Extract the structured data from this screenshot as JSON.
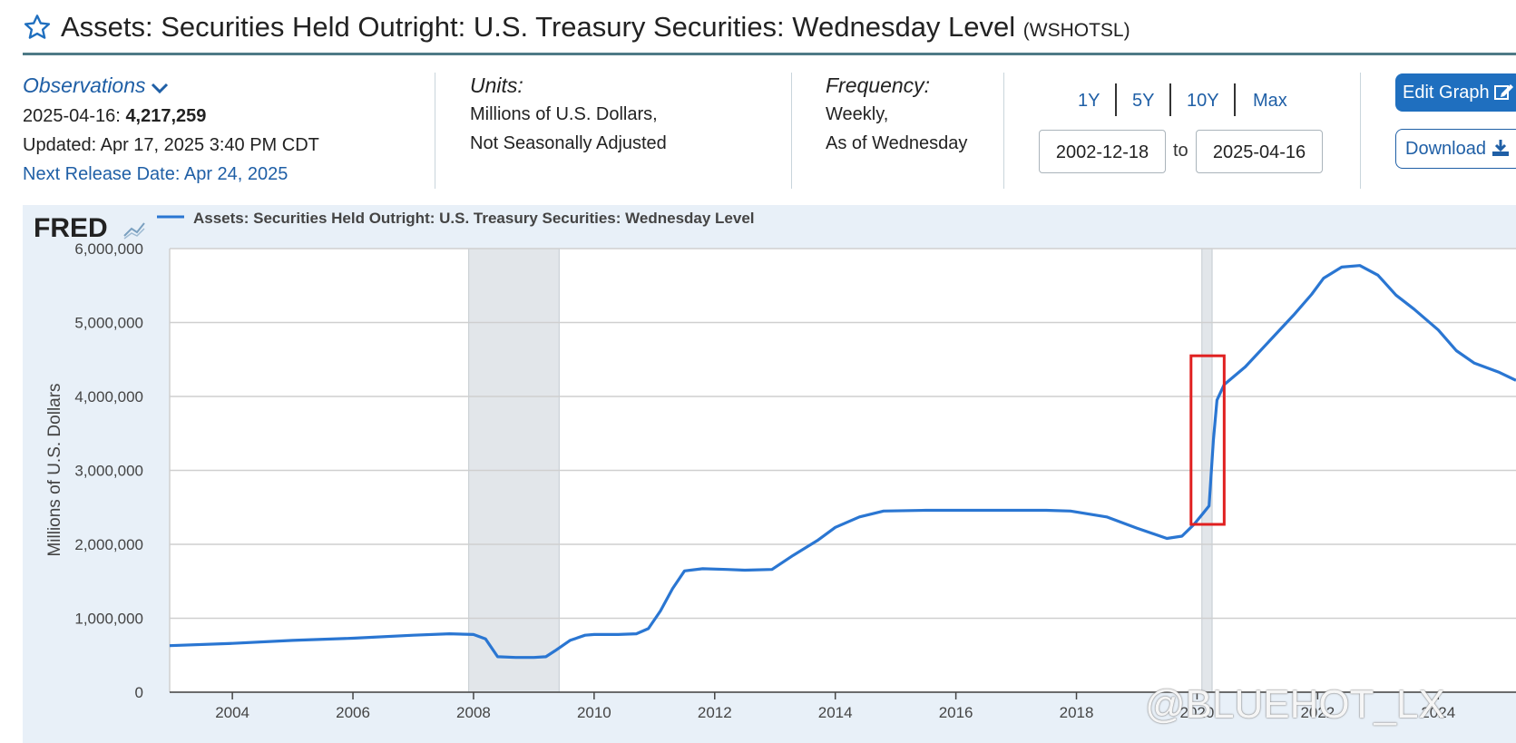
{
  "header": {
    "title": "Assets: Securities Held Outright: U.S. Treasury Securities: Wednesday Level",
    "series_id": "(WSHOTSL)"
  },
  "observations": {
    "label": "Observations",
    "date": "2025-04-16:",
    "value": "4,217,259",
    "updated": "Updated: Apr 17, 2025 3:40 PM CDT",
    "next_release": "Next Release Date: Apr 24, 2025"
  },
  "units": {
    "label": "Units:",
    "line1": "Millions of U.S. Dollars,",
    "line2": "Not Seasonally Adjusted"
  },
  "frequency": {
    "label": "Frequency:",
    "line1": "Weekly,",
    "line2": "As of Wednesday"
  },
  "range": {
    "buttons": [
      "1Y",
      "5Y",
      "10Y",
      "Max"
    ],
    "start": "2002-12-18",
    "to_label": "to",
    "end": "2025-04-16"
  },
  "actions": {
    "edit_label": "Edit Graph",
    "download_label": "Download"
  },
  "colors": {
    "line": "#2a76d2",
    "recession": "#e2e6ea",
    "highlight_box": "#e02020",
    "panel_bg": "#e8f0f8"
  },
  "watermark": "@BLUEHOT_LX",
  "chart_data": {
    "type": "line",
    "logo": "FRED",
    "legend": [
      "Assets: Securities Held Outright: U.S. Treasury Securities: Wednesday Level"
    ],
    "ylabel": "Millions of U.S. Dollars",
    "ylim": [
      0,
      6000000
    ],
    "yticks": [
      0,
      1000000,
      2000000,
      3000000,
      4000000,
      5000000,
      6000000
    ],
    "ytick_labels": [
      "0",
      "1,000,000",
      "2,000,000",
      "3,000,000",
      "4,000,000",
      "5,000,000",
      "6,000,000"
    ],
    "xlim": [
      2002.96,
      2025.29
    ],
    "xtick_labels": [
      "2004",
      "2006",
      "2008",
      "2010",
      "2012",
      "2014",
      "2016",
      "2018",
      "2020",
      "2022",
      "2024"
    ],
    "xticks": [
      2004,
      2006,
      2008,
      2010,
      2012,
      2014,
      2016,
      2018,
      2020,
      2022,
      2024
    ],
    "recessions": [
      [
        2007.92,
        2009.42
      ],
      [
        2020.08,
        2020.25
      ]
    ],
    "highlight": {
      "x": [
        2019.9,
        2020.45
      ],
      "y": [
        2270000,
        4550000
      ]
    },
    "series": [
      {
        "values": [
          [
            2002.96,
            630000
          ],
          [
            2004.0,
            660000
          ],
          [
            2005.0,
            700000
          ],
          [
            2006.0,
            730000
          ],
          [
            2007.0,
            770000
          ],
          [
            2007.6,
            790000
          ],
          [
            2008.0,
            780000
          ],
          [
            2008.2,
            720000
          ],
          [
            2008.4,
            480000
          ],
          [
            2008.7,
            470000
          ],
          [
            2009.0,
            470000
          ],
          [
            2009.2,
            480000
          ],
          [
            2009.35,
            560000
          ],
          [
            2009.6,
            700000
          ],
          [
            2009.85,
            770000
          ],
          [
            2010.0,
            780000
          ],
          [
            2010.4,
            780000
          ],
          [
            2010.7,
            790000
          ],
          [
            2010.9,
            860000
          ],
          [
            2011.1,
            1100000
          ],
          [
            2011.3,
            1400000
          ],
          [
            2011.5,
            1640000
          ],
          [
            2011.8,
            1670000
          ],
          [
            2012.2,
            1660000
          ],
          [
            2012.5,
            1650000
          ],
          [
            2012.95,
            1660000
          ],
          [
            2013.3,
            1850000
          ],
          [
            2013.7,
            2050000
          ],
          [
            2014.0,
            2230000
          ],
          [
            2014.4,
            2370000
          ],
          [
            2014.8,
            2450000
          ],
          [
            2015.5,
            2460000
          ],
          [
            2016.5,
            2460000
          ],
          [
            2017.5,
            2460000
          ],
          [
            2017.9,
            2450000
          ],
          [
            2018.5,
            2370000
          ],
          [
            2019.0,
            2220000
          ],
          [
            2019.5,
            2080000
          ],
          [
            2019.75,
            2110000
          ],
          [
            2019.95,
            2270000
          ],
          [
            2020.1,
            2420000
          ],
          [
            2020.2,
            2520000
          ],
          [
            2020.27,
            3400000
          ],
          [
            2020.33,
            3950000
          ],
          [
            2020.45,
            4160000
          ],
          [
            2020.8,
            4400000
          ],
          [
            2021.2,
            4750000
          ],
          [
            2021.6,
            5100000
          ],
          [
            2021.9,
            5380000
          ],
          [
            2022.1,
            5600000
          ],
          [
            2022.4,
            5750000
          ],
          [
            2022.7,
            5770000
          ],
          [
            2023.0,
            5640000
          ],
          [
            2023.3,
            5370000
          ],
          [
            2023.6,
            5180000
          ],
          [
            2024.0,
            4900000
          ],
          [
            2024.3,
            4620000
          ],
          [
            2024.6,
            4450000
          ],
          [
            2025.0,
            4330000
          ],
          [
            2025.29,
            4217259
          ]
        ]
      }
    ]
  }
}
